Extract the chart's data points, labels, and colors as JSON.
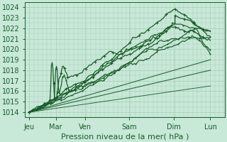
{
  "title": "",
  "xlabel": "Pression niveau de la mer( hPa )",
  "ylabel": "",
  "bg_color": "#c8e8d8",
  "grid_color": "#a8ccbb",
  "line_color": "#1a5c2a",
  "xlim": [
    0,
    6.8
  ],
  "ylim": [
    1013.5,
    1024.5
  ],
  "yticks": [
    1014,
    1015,
    1016,
    1017,
    1018,
    1019,
    1020,
    1021,
    1022,
    1023,
    1024
  ],
  "xtick_labels": [
    "Jeu",
    "Mar",
    "Ven",
    "Sam",
    "Dim",
    "Lun"
  ],
  "xtick_positions": [
    0.15,
    1.05,
    2.05,
    3.55,
    5.05,
    6.3
  ],
  "xlabel_fontsize": 8,
  "tick_fontsize": 7
}
